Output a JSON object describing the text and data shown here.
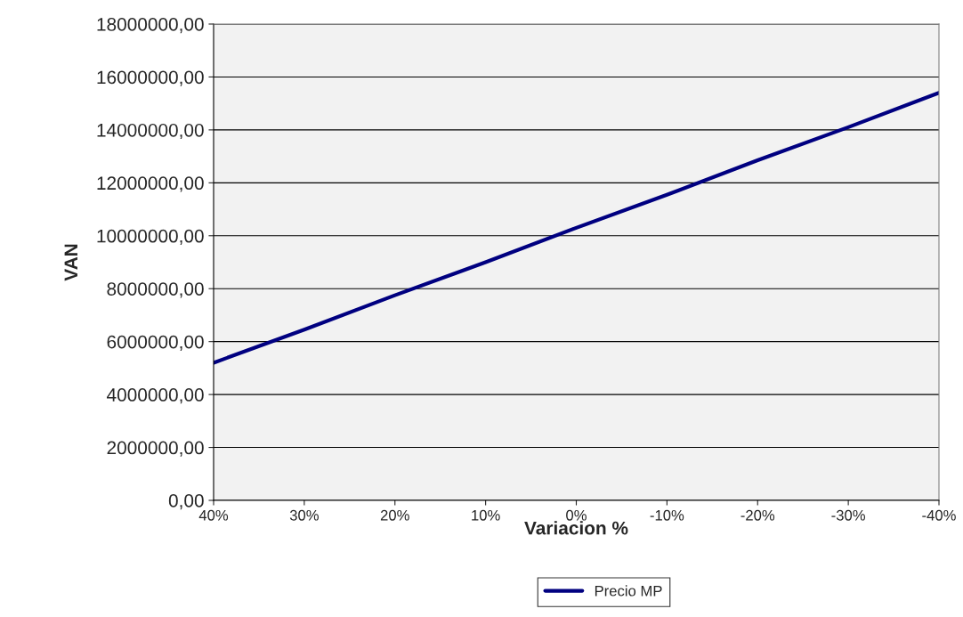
{
  "chart_data": {
    "type": "line",
    "xlabel": "Variacion %",
    "ylabel": "VAN",
    "x": [
      40,
      30,
      20,
      10,
      0,
      -10,
      -20,
      -30,
      -40
    ],
    "series": [
      {
        "name": "Precio MP",
        "color": "#000080",
        "values": [
          5200000,
          6450000,
          7750000,
          9000000,
          10300000,
          11550000,
          12850000,
          14100000,
          15400000
        ]
      }
    ],
    "xlim": [
      40,
      -40
    ],
    "xticks": [
      {
        "value": 40,
        "label": "40%"
      },
      {
        "value": 30,
        "label": "30%"
      },
      {
        "value": 20,
        "label": "20%"
      },
      {
        "value": 10,
        "label": "10%"
      },
      {
        "value": 0,
        "label": "0%"
      },
      {
        "value": -10,
        "label": "-10%"
      },
      {
        "value": -20,
        "label": "-20%"
      },
      {
        "value": -30,
        "label": "-30%"
      },
      {
        "value": -40,
        "label": "-40%"
      }
    ],
    "ylim": [
      0,
      18000000
    ],
    "yticks": [
      {
        "value": 0,
        "label": "0,00"
      },
      {
        "value": 2000000,
        "label": "2000000,00"
      },
      {
        "value": 4000000,
        "label": "4000000,00"
      },
      {
        "value": 6000000,
        "label": "6000000,00"
      },
      {
        "value": 8000000,
        "label": "8000000,00"
      },
      {
        "value": 10000000,
        "label": "10000000,00"
      },
      {
        "value": 12000000,
        "label": "12000000,00"
      },
      {
        "value": 14000000,
        "label": "14000000,00"
      },
      {
        "value": 16000000,
        "label": "16000000,00"
      },
      {
        "value": 18000000,
        "label": "18000000,00"
      }
    ],
    "grid": "y",
    "legend": "bottom",
    "marker": "none",
    "line_style": "solid"
  }
}
